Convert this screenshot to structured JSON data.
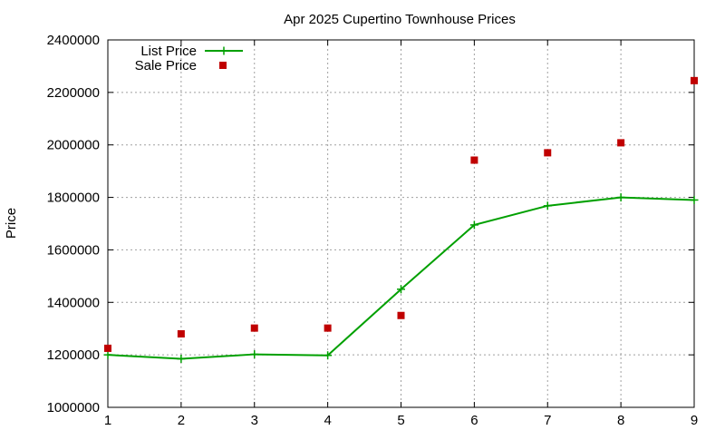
{
  "chart_data": {
    "type": "line",
    "title": "Apr 2025 Cupertino Townhouse Prices",
    "xlabel": "",
    "ylabel": "Price",
    "xlim": [
      1,
      9
    ],
    "ylim": [
      1000000,
      2400000
    ],
    "xticks": [
      1,
      2,
      3,
      4,
      5,
      6,
      7,
      8,
      9
    ],
    "yticks": [
      1000000,
      1200000,
      1400000,
      1600000,
      1800000,
      2000000,
      2200000,
      2400000
    ],
    "grid": true,
    "legend_position": "top-left",
    "series": [
      {
        "name": "List Price",
        "style": "line-with-plus-markers",
        "color": "#00a000",
        "x": [
          1,
          2,
          3,
          4,
          5,
          6,
          7,
          8,
          9
        ],
        "y": [
          1200000,
          1185000,
          1202000,
          1198000,
          1450000,
          1695000,
          1768000,
          1800000,
          1790000
        ]
      },
      {
        "name": "Sale Price",
        "style": "square-points",
        "color": "#c00000",
        "x": [
          1,
          2,
          3,
          4,
          5,
          6,
          7,
          8,
          9
        ],
        "y": [
          1225000,
          1280000,
          1302000,
          1302000,
          1350000,
          1942000,
          1970000,
          2008000,
          2245000
        ]
      }
    ]
  }
}
